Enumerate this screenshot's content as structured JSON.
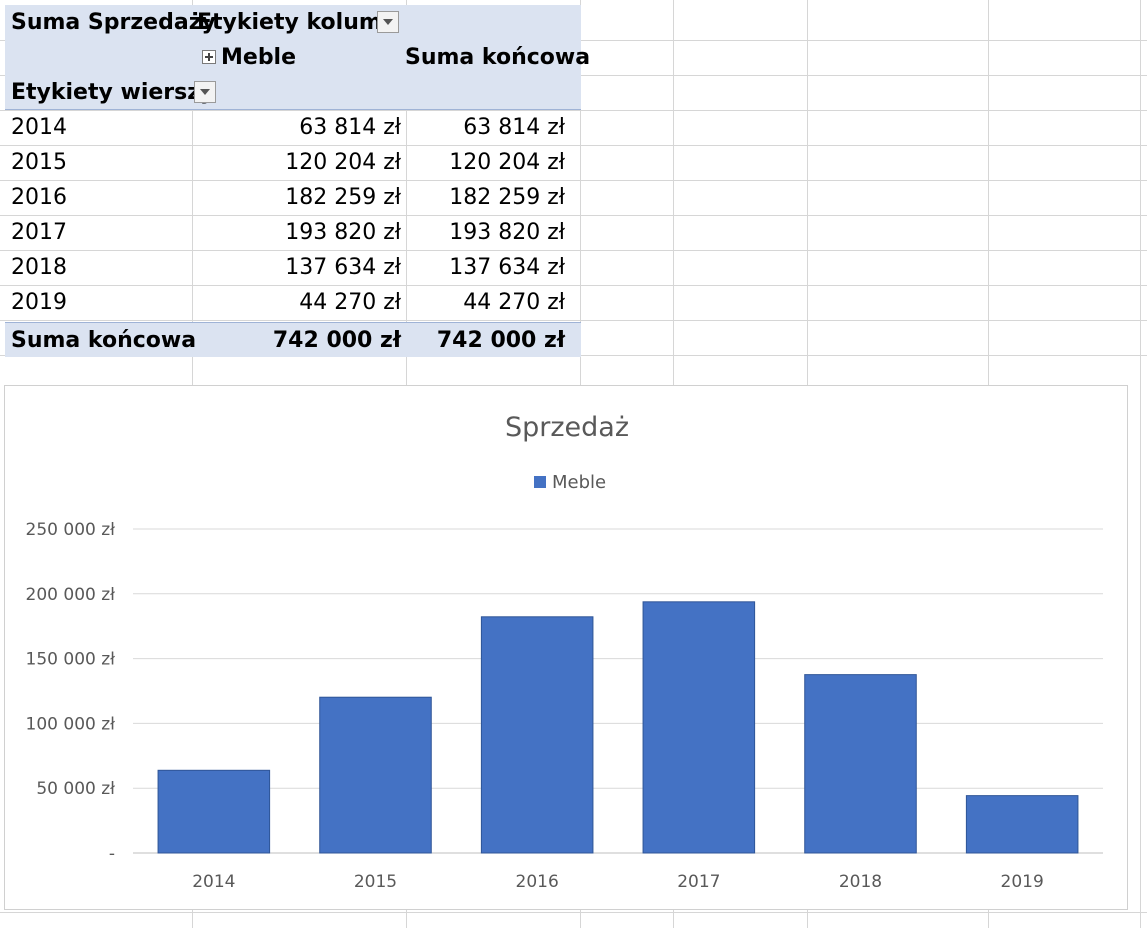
{
  "pivot": {
    "corner_label": "Suma Sprzedaży",
    "col_labels_header": "Etykiety kolumn",
    "col_meble": "Meble",
    "col_total": "Suma końcowa",
    "row_labels_header": "Etykiety wierszy",
    "rows": [
      {
        "year": "2014",
        "meble": "63 814 zł",
        "total": "63 814 zł"
      },
      {
        "year": "2015",
        "meble": "120 204 zł",
        "total": "120 204 zł"
      },
      {
        "year": "2016",
        "meble": "182 259 zł",
        "total": "182 259 zł"
      },
      {
        "year": "2017",
        "meble": "193 820 zł",
        "total": "193 820 zł"
      },
      {
        "year": "2018",
        "meble": "137 634 zł",
        "total": "137 634 zł"
      },
      {
        "year": "2019",
        "meble": "44 270 zł",
        "total": "44 270 zł"
      }
    ],
    "grand_total_label": "Suma końcowa",
    "grand_total_meble": "742 000 zł",
    "grand_total_total": "742 000 zł"
  },
  "colors": {
    "bar": "#4472c4",
    "pivot_header_bg": "#dbe3f1"
  },
  "chart_data": {
    "type": "bar",
    "title": "Sprzedaż",
    "categories": [
      "2014",
      "2015",
      "2016",
      "2017",
      "2018",
      "2019"
    ],
    "series": [
      {
        "name": "Meble",
        "values": [
          63814,
          120204,
          182259,
          193820,
          137634,
          44270
        ]
      }
    ],
    "ylim": [
      0,
      250000
    ],
    "yticks": [
      0,
      50000,
      100000,
      150000,
      200000,
      250000
    ],
    "ytick_labels": [
      "-",
      "50 000 zł",
      "100 000 zł",
      "150 000 zł",
      "200 000 zł",
      "250 000 zł"
    ],
    "legend_position": "top",
    "grid": true
  }
}
